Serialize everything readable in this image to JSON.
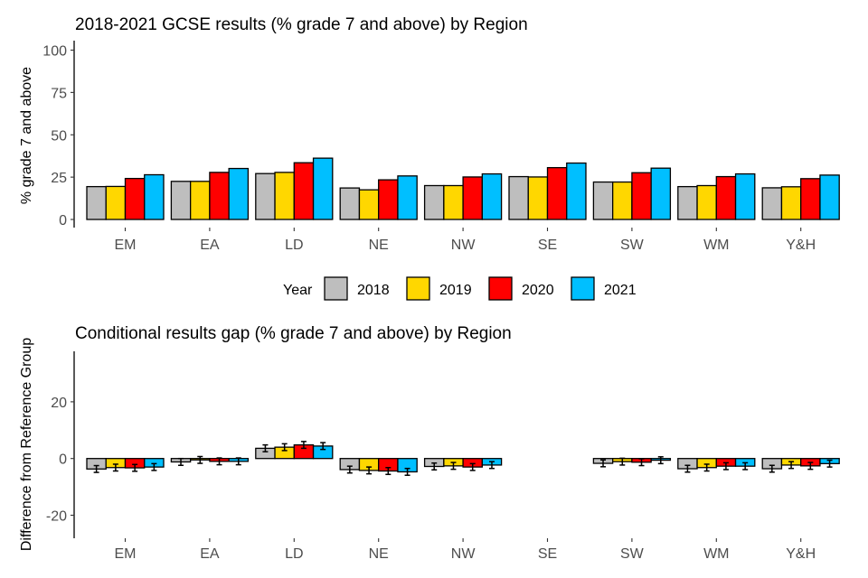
{
  "legend": {
    "title": "Year",
    "entries": [
      {
        "label": "2018",
        "color": "#BEBEBE"
      },
      {
        "label": "2019",
        "color": "#FFD700"
      },
      {
        "label": "2020",
        "color": "#FF0000"
      },
      {
        "label": "2021",
        "color": "#00BFFF"
      }
    ]
  },
  "chart_data": [
    {
      "type": "bar",
      "title": "2018-2021 GCSE results (% grade 7 and above) by Region",
      "xlabel": "",
      "ylabel": "% grade 7 and above",
      "ylim": [
        0,
        100
      ],
      "yticks": [
        0,
        25,
        50,
        75,
        100
      ],
      "grid": false,
      "legend_position": "bottom",
      "categories": [
        "EM",
        "EA",
        "LD",
        "NE",
        "NW",
        "SE",
        "SW",
        "WM",
        "Y&H"
      ],
      "series": [
        {
          "name": "2018",
          "color": "#BEBEBE",
          "values": [
            19.4,
            22.5,
            27.1,
            18.6,
            20.0,
            25.3,
            22.1,
            19.4,
            18.7
          ]
        },
        {
          "name": "2019",
          "color": "#FFD700",
          "values": [
            19.5,
            22.5,
            27.8,
            17.5,
            20.0,
            25.1,
            22.1,
            20.0,
            19.3
          ]
        },
        {
          "name": "2020",
          "color": "#FF0000",
          "values": [
            24.2,
            27.8,
            33.5,
            23.4,
            25.1,
            30.6,
            27.6,
            25.3,
            24.1
          ]
        },
        {
          "name": "2021",
          "color": "#00BFFF",
          "values": [
            26.4,
            30.1,
            36.2,
            25.7,
            26.9,
            33.3,
            30.3,
            26.9,
            26.2
          ]
        }
      ]
    },
    {
      "type": "bar",
      "title": "Conditional results gap (% grade 7 and above) by Region",
      "xlabel": "",
      "ylabel": "Difference from Reference Group",
      "ylim": [
        -28,
        38
      ],
      "yticks": [
        -20,
        0,
        20
      ],
      "grid": false,
      "error_bars": true,
      "error_half_width": 1.2,
      "categories": [
        "EM",
        "EA",
        "LD",
        "NE",
        "NW",
        "SE",
        "SW",
        "WM",
        "Y&H"
      ],
      "series": [
        {
          "name": "2018",
          "color": "#BEBEBE",
          "values": [
            -3.7,
            -1.2,
            3.6,
            -3.9,
            -2.8,
            null,
            -1.7,
            -3.6,
            -3.6
          ]
        },
        {
          "name": "2019",
          "color": "#FFD700",
          "values": [
            -3.2,
            -0.5,
            4.0,
            -4.2,
            -2.6,
            null,
            -1.1,
            -3.2,
            -2.3
          ]
        },
        {
          "name": "2020",
          "color": "#FF0000",
          "values": [
            -3.3,
            -1.0,
            4.8,
            -4.4,
            -3.0,
            null,
            -1.3,
            -2.7,
            -2.6
          ]
        },
        {
          "name": "2021",
          "color": "#00BFFF",
          "values": [
            -3.0,
            -1.0,
            4.4,
            -4.7,
            -2.3,
            null,
            -0.6,
            -2.7,
            -1.8
          ]
        }
      ]
    }
  ]
}
